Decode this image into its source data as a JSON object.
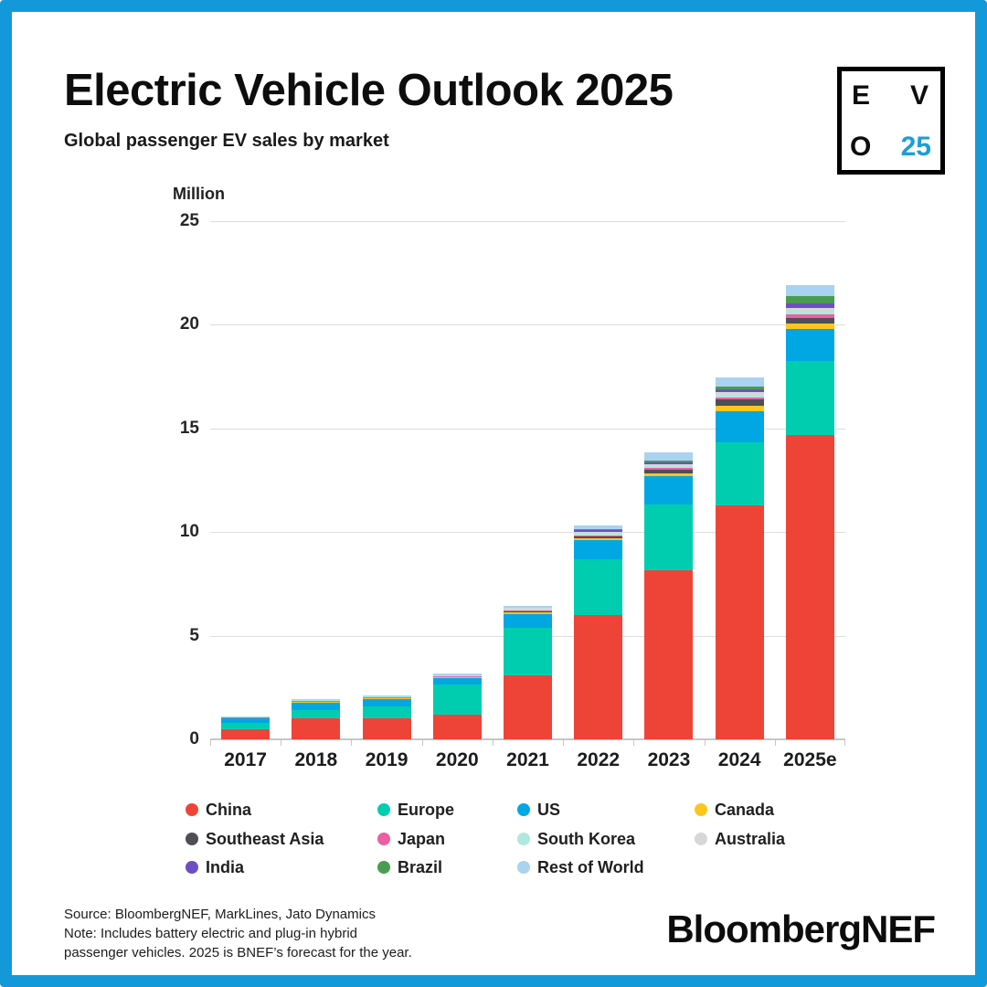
{
  "frame": {
    "border_color": "#1398da",
    "background": "#ffffff"
  },
  "header": {
    "title": "Electric Vehicle Outlook 2025",
    "subtitle": "Global passenger EV sales by market",
    "logo_box": {
      "top_left": "E",
      "top_right": "V",
      "bottom_left": "O",
      "bottom_right": "25",
      "accent_color": "#1b9dd9"
    }
  },
  "chart_data": {
    "type": "bar",
    "stacked": true,
    "title": "Global passenger EV sales by market",
    "unit_label": "Million",
    "xlabel": "",
    "ylabel": "Million",
    "ylim": [
      0,
      25
    ],
    "yticks": [
      0,
      5,
      10,
      15,
      20,
      25
    ],
    "grid": "horizontal",
    "legend_position": "bottom",
    "categories": [
      "2017",
      "2018",
      "2019",
      "2020",
      "2021",
      "2022",
      "2023",
      "2024",
      "2025e"
    ],
    "series": [
      {
        "name": "China",
        "color": "#ee4438",
        "values": [
          0.5,
          1.0,
          1.0,
          1.2,
          3.1,
          6.0,
          8.15,
          11.3,
          14.7
        ]
      },
      {
        "name": "Europe",
        "color": "#00cdb0",
        "values": [
          0.3,
          0.4,
          0.6,
          1.45,
          2.3,
          2.7,
          3.2,
          3.05,
          3.55
        ]
      },
      {
        "name": "US",
        "color": "#00a7e2",
        "values": [
          0.2,
          0.36,
          0.33,
          0.3,
          0.65,
          0.9,
          1.35,
          1.5,
          1.55
        ]
      },
      {
        "name": "Canada",
        "color": "#fcc61d",
        "values": [
          0.02,
          0.04,
          0.05,
          0.05,
          0.09,
          0.11,
          0.14,
          0.25,
          0.25
        ]
      },
      {
        "name": "Southeast Asia",
        "color": "#4e4e54",
        "values": [
          0.01,
          0.01,
          0.01,
          0.01,
          0.03,
          0.08,
          0.16,
          0.3,
          0.28
        ]
      },
      {
        "name": "Japan",
        "color": "#ec5fa1",
        "values": [
          0.05,
          0.05,
          0.04,
          0.03,
          0.05,
          0.06,
          0.09,
          0.1,
          0.18
        ]
      },
      {
        "name": "South Korea",
        "color": "#aee8df",
        "values": [
          0.01,
          0.03,
          0.03,
          0.05,
          0.1,
          0.12,
          0.1,
          0.12,
          0.16
        ]
      },
      {
        "name": "Australia",
        "color": "#d7d7d7",
        "values": [
          0.01,
          0.01,
          0.01,
          0.01,
          0.02,
          0.06,
          0.09,
          0.12,
          0.15
        ]
      },
      {
        "name": "India",
        "color": "#6e4fc1",
        "values": [
          0.0,
          0.0,
          0.0,
          0.0,
          0.01,
          0.05,
          0.09,
          0.14,
          0.22
        ]
      },
      {
        "name": "Brazil",
        "color": "#4a9c51",
        "values": [
          0.0,
          0.0,
          0.0,
          0.0,
          0.01,
          0.05,
          0.06,
          0.15,
          0.33
        ]
      },
      {
        "name": "Rest of World",
        "color": "#a9d3f0",
        "values": [
          0.02,
          0.03,
          0.04,
          0.06,
          0.1,
          0.2,
          0.4,
          0.45,
          0.55
        ]
      }
    ]
  },
  "footer": {
    "source_line": "Source: BloombergNEF, MarkLines, Jato Dynamics",
    "note_line1": "Note: Includes battery electric and plug-in hybrid",
    "note_line2": "passenger vehicles. 2025 is BNEF’s forecast for the year.",
    "brand": "BloombergNEF"
  }
}
